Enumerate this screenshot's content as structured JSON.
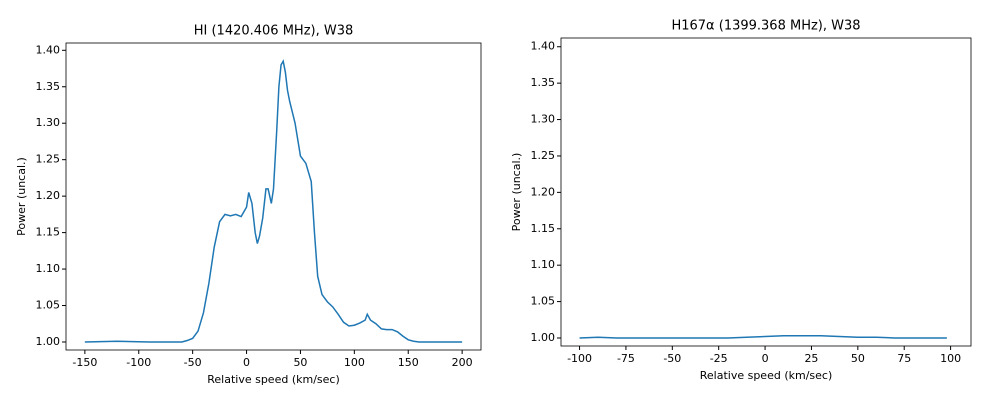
{
  "chart_data": [
    {
      "type": "line",
      "title": "HI (1420.406 MHz), W38",
      "x_label": "Relative speed (km/sec)",
      "y_label": "Power (uncal.)",
      "xlim": [
        -167.5,
        217.5
      ],
      "ylim": [
        0.989,
        1.41
      ],
      "xticks": [
        -150,
        -100,
        -50,
        0,
        50,
        100,
        150,
        200
      ],
      "yticks": [
        {
          "value": 1.0,
          "label": "1.00"
        },
        1.05,
        {
          "value": 1.1,
          "label": "1.10"
        },
        1.15,
        {
          "value": 1.2,
          "label": "1.20"
        },
        1.25,
        {
          "value": 1.3,
          "label": "1.30"
        },
        1.35,
        {
          "value": 1.4,
          "label": "1.40"
        }
      ],
      "x": [
        -150,
        -120,
        -90,
        -60,
        -55,
        -50,
        -45,
        -40,
        -35,
        -30,
        -25,
        -20,
        -15,
        -10,
        -5,
        0,
        2,
        5,
        8,
        10,
        12,
        15,
        18,
        20,
        23,
        25,
        28,
        30,
        32,
        34,
        36,
        38,
        40,
        45,
        50,
        55,
        60,
        63,
        66,
        70,
        75,
        80,
        85,
        90,
        95,
        100,
        105,
        110,
        112,
        115,
        120,
        125,
        130,
        135,
        140,
        145,
        150,
        155,
        160,
        200
      ],
      "series": [
        {
          "name": "HI",
          "color": "#1f77b4",
          "values": [
            1.0,
            1.001,
            1.0,
            1.0,
            1.002,
            1.005,
            1.015,
            1.04,
            1.08,
            1.13,
            1.165,
            1.175,
            1.173,
            1.175,
            1.172,
            1.185,
            1.205,
            1.19,
            1.15,
            1.135,
            1.145,
            1.17,
            1.21,
            1.21,
            1.19,
            1.21,
            1.29,
            1.35,
            1.38,
            1.385,
            1.37,
            1.345,
            1.33,
            1.3,
            1.255,
            1.245,
            1.22,
            1.15,
            1.09,
            1.065,
            1.055,
            1.048,
            1.038,
            1.027,
            1.022,
            1.023,
            1.026,
            1.03,
            1.038,
            1.03,
            1.025,
            1.018,
            1.017,
            1.017,
            1.014,
            1.008,
            1.003,
            1.001,
            1.0,
            1.0
          ]
        }
      ]
    },
    {
      "type": "line",
      "title": "H167α (1399.368 MHz), W38",
      "x_label": "Relative speed (km/sec)",
      "y_label": "Power (uncal.)",
      "xlim": [
        -110,
        111
      ],
      "ylim": [
        0.989,
        1.412
      ],
      "xticks": [
        -100,
        -75,
        -50,
        -25,
        0,
        25,
        50,
        75,
        100
      ],
      "yticks": [
        {
          "value": 1.0,
          "label": "1.00"
        },
        1.05,
        {
          "value": 1.1,
          "label": "1.10"
        },
        1.15,
        {
          "value": 1.2,
          "label": "1.20"
        },
        1.25,
        {
          "value": 1.3,
          "label": "1.30"
        },
        1.35,
        {
          "value": 1.4,
          "label": "1.40"
        }
      ],
      "x": [
        -100,
        -90,
        -80,
        -70,
        -60,
        -50,
        -40,
        -30,
        -20,
        -10,
        0,
        10,
        20,
        30,
        40,
        50,
        60,
        70,
        80,
        90,
        98
      ],
      "series": [
        {
          "name": "H167α",
          "color": "#1f77b4",
          "values": [
            1.0,
            1.001,
            1.0,
            1.0,
            1.0,
            1.0,
            1.0,
            1.0,
            1.0,
            1.001,
            1.002,
            1.003,
            1.003,
            1.003,
            1.002,
            1.001,
            1.001,
            1.0,
            1.0,
            1.0,
            1.0
          ]
        }
      ]
    }
  ]
}
